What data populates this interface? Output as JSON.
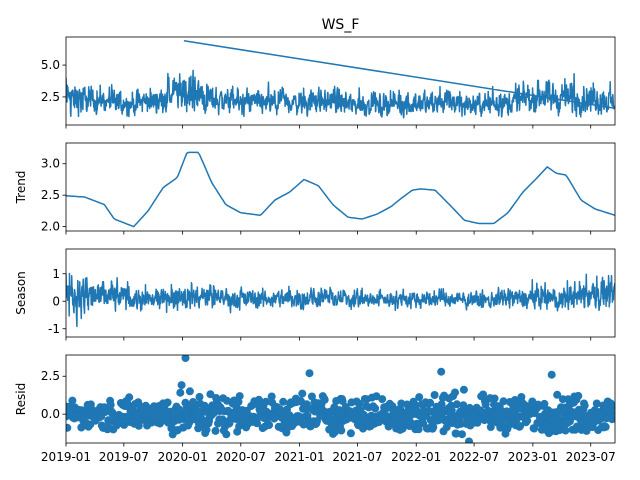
{
  "chart_data": {
    "type": "line",
    "title": "WS_F",
    "x_ticks": [
      "2019-01",
      "2019-07",
      "2020-01",
      "2020-07",
      "2021-01",
      "2021-07",
      "2022-01",
      "2022-07",
      "2023-01",
      "2023-07"
    ],
    "x_range": [
      "2019-01-01",
      "2023-09-15"
    ],
    "colors": {
      "series": "#1f77b4",
      "axis": "#000000"
    },
    "panels": [
      {
        "name": "observed",
        "ylabel": "",
        "ylim": [
          0.3,
          7.2
        ],
        "yticks": [
          "2.5",
          "5.0"
        ],
        "ytick_values": [
          2.5,
          5.0
        ],
        "kind": "line",
        "envelope": {
          "dates": [
            "2019-01-01",
            "2019-04-01",
            "2019-07-01",
            "2019-10-01",
            "2020-01-01",
            "2020-04-01",
            "2020-07-01",
            "2020-10-01",
            "2021-01-01",
            "2021-04-01",
            "2021-07-01",
            "2021-10-01",
            "2022-01-01",
            "2022-04-01",
            "2022-07-01",
            "2022-10-01",
            "2023-01-01",
            "2023-04-01",
            "2023-07-01",
            "2023-09-15"
          ],
          "low": [
            0.9,
            0.9,
            0.9,
            1.0,
            1.1,
            1.0,
            0.9,
            0.9,
            1.0,
            1.0,
            0.9,
            0.8,
            0.9,
            0.9,
            0.9,
            0.9,
            1.0,
            1.0,
            0.9,
            1.0
          ],
          "high": [
            5.6,
            4.8,
            4.2,
            4.6,
            6.9,
            5.2,
            4.5,
            4.2,
            4.6,
            4.6,
            4.0,
            4.3,
            4.4,
            4.6,
            4.0,
            4.3,
            5.5,
            5.4,
            5.1,
            4.2
          ]
        },
        "spike": {
          "date": "2020-01-05",
          "value": 6.9
        }
      },
      {
        "name": "trend",
        "ylabel": "Trend",
        "ylim": [
          1.93,
          3.33
        ],
        "yticks": [
          "2.0",
          "2.5",
          "3.0"
        ],
        "ytick_values": [
          2.0,
          2.5,
          3.0
        ],
        "kind": "line",
        "dates": [
          "2019-01-01",
          "2019-03-01",
          "2019-05-01",
          "2019-06-01",
          "2019-08-01",
          "2019-09-15",
          "2019-11-01",
          "2019-12-15",
          "2020-01-15",
          "2020-02-20",
          "2020-04-01",
          "2020-05-15",
          "2020-07-01",
          "2020-09-01",
          "2020-10-15",
          "2020-12-01",
          "2021-01-15",
          "2021-03-01",
          "2021-04-15",
          "2021-06-01",
          "2021-07-15",
          "2021-09-01",
          "2021-10-15",
          "2021-11-15",
          "2021-12-20",
          "2022-01-15",
          "2022-03-01",
          "2022-04-15",
          "2022-06-01",
          "2022-07-15",
          "2022-09-01",
          "2022-10-15",
          "2022-12-01",
          "2023-01-15",
          "2023-02-15",
          "2023-03-15",
          "2023-04-15",
          "2023-06-01",
          "2023-07-15",
          "2023-09-15"
        ],
        "values": [
          2.49,
          2.47,
          2.35,
          2.12,
          2.0,
          2.25,
          2.62,
          2.78,
          3.18,
          3.18,
          2.7,
          2.35,
          2.22,
          2.18,
          2.42,
          2.55,
          2.75,
          2.65,
          2.35,
          2.15,
          2.12,
          2.2,
          2.32,
          2.45,
          2.58,
          2.6,
          2.58,
          2.35,
          2.1,
          2.05,
          2.05,
          2.22,
          2.55,
          2.78,
          2.95,
          2.85,
          2.82,
          2.42,
          2.28,
          2.18
        ]
      },
      {
        "name": "seasonal",
        "ylabel": "Season",
        "ylim": [
          -1.3,
          1.9
        ],
        "yticks": [
          "-1",
          "0",
          "1"
        ],
        "ytick_values": [
          -1,
          0,
          1
        ],
        "kind": "line",
        "envelope": {
          "dates": [
            "2019-01-01",
            "2019-04-01",
            "2019-07-01",
            "2019-10-01",
            "2020-01-01",
            "2020-04-01",
            "2020-07-01",
            "2020-10-01",
            "2021-01-01",
            "2021-04-01",
            "2021-07-01",
            "2021-10-01",
            "2022-01-01",
            "2022-04-01",
            "2022-07-01",
            "2022-10-01",
            "2023-01-01",
            "2023-04-01",
            "2023-07-01",
            "2023-09-15"
          ],
          "low": [
            -1.2,
            -1.0,
            -0.7,
            -0.7,
            -0.8,
            -0.6,
            -0.55,
            -0.55,
            -0.6,
            -0.5,
            -0.5,
            -0.5,
            -0.55,
            -0.5,
            -0.5,
            -0.55,
            -0.7,
            -0.7,
            -0.8,
            -0.9
          ],
          "high": [
            1.6,
            1.3,
            1.0,
            0.8,
            1.1,
            0.8,
            0.7,
            0.7,
            0.8,
            0.7,
            0.6,
            0.6,
            0.7,
            0.6,
            0.55,
            0.7,
            0.95,
            0.9,
            1.3,
            1.3
          ]
        }
      },
      {
        "name": "resid",
        "ylabel": "Resid",
        "ylim": [
          -1.9,
          3.9
        ],
        "yticks": [
          "0.0",
          "2.5"
        ],
        "ytick_values": [
          0.0,
          2.5
        ],
        "kind": "scatter",
        "envelope": {
          "dates": [
            "2019-01-01",
            "2019-04-01",
            "2019-07-01",
            "2019-10-01",
            "2020-01-01",
            "2020-04-01",
            "2020-07-01",
            "2020-10-01",
            "2021-01-01",
            "2021-04-01",
            "2021-07-01",
            "2021-10-01",
            "2022-01-01",
            "2022-04-01",
            "2022-07-01",
            "2022-10-01",
            "2023-01-01",
            "2023-04-01",
            "2023-07-01",
            "2023-09-15"
          ],
          "low": [
            -1.0,
            -1.2,
            -1.3,
            -1.3,
            -1.6,
            -1.4,
            -1.3,
            -1.3,
            -1.2,
            -1.3,
            -1.3,
            -1.3,
            -1.3,
            -1.2,
            -1.4,
            -1.3,
            -1.2,
            -1.3,
            -1.3,
            -1.1
          ],
          "high": [
            1.4,
            1.5,
            1.6,
            1.8,
            2.4,
            2.2,
            1.9,
            1.8,
            2.2,
            2.0,
            1.9,
            1.8,
            2.2,
            2.4,
            1.7,
            1.7,
            1.9,
            1.9,
            2.1,
            1.6
          ]
        },
        "outliers": [
          {
            "date": "2020-01-10",
            "value": 3.7
          },
          {
            "date": "2022-03-20",
            "value": 2.8
          },
          {
            "date": "2022-06-15",
            "value": -1.8
          },
          {
            "date": "2021-02-01",
            "value": 2.7
          },
          {
            "date": "2023-03-01",
            "value": 2.6
          }
        ]
      }
    ]
  }
}
